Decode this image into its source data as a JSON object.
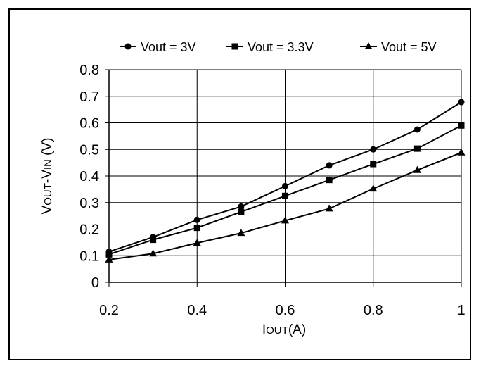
{
  "chart_data": {
    "type": "line",
    "x": [
      0.2,
      0.3,
      0.4,
      0.5,
      0.6,
      0.7,
      0.8,
      0.9,
      1.0
    ],
    "x_tick_labels": [
      "0.2",
      "0.4",
      "0.6",
      "0.8",
      "1"
    ],
    "x_ticks": [
      0.2,
      0.4,
      0.6,
      0.8,
      1.0
    ],
    "y_tick_labels": [
      "0",
      "0.1",
      "0.2",
      "0.3",
      "0.4",
      "0.5",
      "0.6",
      "0.7",
      "0.8"
    ],
    "y_ticks": [
      0,
      0.1,
      0.2,
      0.3,
      0.4,
      0.5,
      0.6,
      0.7,
      0.8
    ],
    "xlim": [
      0.2,
      1.0
    ],
    "ylim": [
      0,
      0.8
    ],
    "xlabel_main": "I",
    "xlabel_sub": "OUT",
    "xlabel_unit": "(A)",
    "ylabel_a": "V",
    "ylabel_b": "OUT",
    "ylabel_c": "-V",
    "ylabel_d": "IN",
    "ylabel_e": " (V)",
    "grid": true,
    "legend_position": "top",
    "series": [
      {
        "name": "Vout = 3V",
        "marker": "circle",
        "values": [
          0.115,
          0.17,
          0.235,
          0.285,
          0.362,
          0.44,
          0.5,
          0.575,
          0.678
        ]
      },
      {
        "name": "Vout = 3.3V",
        "marker": "square",
        "values": [
          0.105,
          0.16,
          0.205,
          0.265,
          0.325,
          0.385,
          0.445,
          0.503,
          0.59
        ]
      },
      {
        "name": "Vout = 5V",
        "marker": "triangle",
        "values": [
          0.085,
          0.108,
          0.148,
          0.185,
          0.232,
          0.277,
          0.352,
          0.422,
          0.488
        ]
      }
    ]
  }
}
